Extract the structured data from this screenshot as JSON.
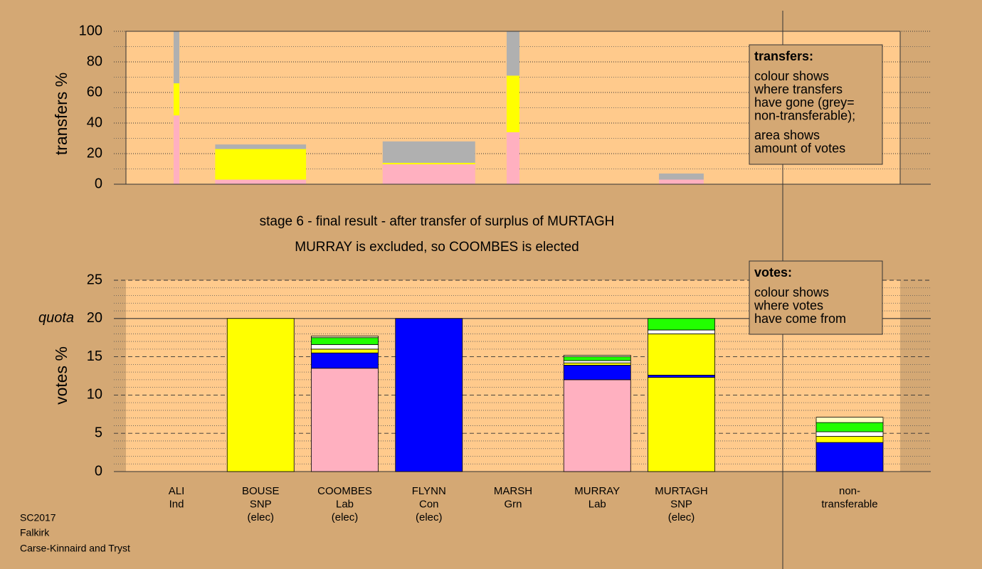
{
  "chart_data": [
    {
      "type": "stacked-bar",
      "ylabel": "transfers %",
      "ylim": [
        0,
        100
      ],
      "yticks": [
        0,
        20,
        40,
        60,
        80,
        100
      ],
      "minor_yticks": [
        10,
        30,
        50,
        70,
        90
      ],
      "series": [
        {
          "color": "#ffb0c0",
          "values": [
            45,
            3,
            null,
            13,
            34,
            null,
            3,
            null,
            null
          ]
        },
        {
          "color": "#ffff00",
          "values": [
            21,
            20,
            null,
            1,
            37,
            null,
            0,
            null,
            null
          ]
        },
        {
          "color": "#b0b0b0",
          "values": [
            34,
            3,
            null,
            14,
            29,
            null,
            4,
            null,
            null
          ]
        }
      ],
      "amounts": [
        2.0,
        8.3,
        null,
        9.1,
        4.5,
        null,
        1.1,
        null,
        null
      ],
      "legend": {
        "title": "transfers:",
        "lines": [
          "colour shows",
          "where transfers",
          "have gone (grey=",
          "non-transferable);"
        ],
        "lines2": [
          "area shows",
          "amount of votes"
        ]
      }
    },
    {
      "type": "stacked-bar",
      "title": [
        "stage 6 - final result - after transfer of surplus of MURTAGH",
        "MURRAY is excluded, so COOMBES is elected"
      ],
      "ylabel": "votes %",
      "ylim": [
        0,
        25
      ],
      "yticks": [
        0,
        5,
        10,
        15,
        20,
        25
      ],
      "minor_yticks": [
        1,
        2,
        3,
        4,
        6,
        7,
        8,
        9,
        11,
        12,
        13,
        14,
        16,
        17,
        18,
        19,
        21,
        22,
        23,
        24
      ],
      "quota": 20,
      "quota_label": "quota",
      "categories": [
        [
          "ALI",
          "Ind"
        ],
        [
          "BOUSE",
          "SNP",
          "(elec)"
        ],
        [
          "COOMBES",
          "Lab",
          "(elec)"
        ],
        [
          "FLYNN",
          "Con",
          "(elec)"
        ],
        [
          "MARSH",
          "Grn"
        ],
        [
          "MURRAY",
          "Lab"
        ],
        [
          "MURTAGH",
          "SNP",
          "(elec)"
        ],
        null,
        [
          "non-",
          "transferable"
        ]
      ],
      "series": [
        {
          "color": "#ffb0c0",
          "values": [
            0,
            null,
            13.5,
            null,
            0,
            12.0,
            null,
            null,
            null
          ]
        },
        {
          "color": "#ffff00",
          "values": [
            null,
            20,
            null,
            null,
            null,
            null,
            12.3,
            null,
            null
          ]
        },
        {
          "color": "#0000ff",
          "values": [
            null,
            null,
            2.0,
            20,
            null,
            1.9,
            0.3,
            null,
            3.8
          ]
        },
        {
          "color": "#ffff00",
          "values": [
            null,
            null,
            0.5,
            null,
            null,
            0.3,
            5.4,
            null,
            0.8
          ]
        },
        {
          "color": "#ffffff",
          "values": [
            null,
            null,
            0.6,
            null,
            null,
            0.3,
            0.5,
            null,
            0.6
          ]
        },
        {
          "color": "#22ff00",
          "values": [
            null,
            null,
            0.9,
            null,
            null,
            0.5,
            1.5,
            null,
            1.2
          ]
        },
        {
          "color": "#ffffc0",
          "values": [
            null,
            null,
            0.2,
            null,
            null,
            0.2,
            null,
            null,
            0.7
          ]
        }
      ],
      "legend": {
        "title": "votes:",
        "lines": [
          "colour shows",
          "where votes",
          "have come from"
        ]
      }
    }
  ],
  "footer": [
    "SC2017",
    "Falkirk",
    "Carse-Kinnaird and Tryst"
  ]
}
